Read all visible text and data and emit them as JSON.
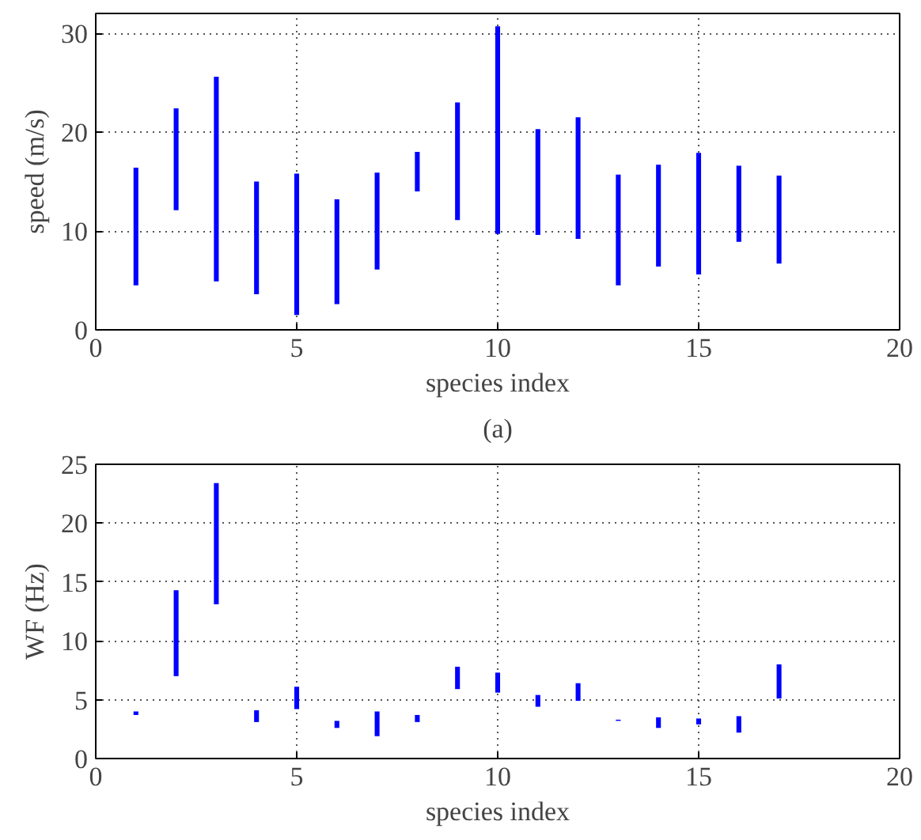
{
  "chart_data": [
    {
      "type": "bar",
      "x": [
        1,
        2,
        3,
        4,
        5,
        6,
        7,
        8,
        9,
        10,
        11,
        12,
        13,
        14,
        15,
        16,
        17
      ],
      "base": [
        4.5,
        12.1,
        4.9,
        3.6,
        1.5,
        2.6,
        6.1,
        14.0,
        11.1,
        9.7,
        9.6,
        9.2,
        4.5,
        6.4,
        5.6,
        8.9,
        6.7
      ],
      "values": [
        11.9,
        10.3,
        20.7,
        11.4,
        14.3,
        10.6,
        9.8,
        4.0,
        11.9,
        21.0,
        10.7,
        12.3,
        11.2,
        10.3,
        12.3,
        7.7,
        8.9
      ],
      "color": "#0000ff",
      "xlabel": "species index",
      "ylabel": "speed (m/s)",
      "xlim": [
        0,
        20
      ],
      "xticks": [
        0,
        5,
        10,
        15,
        20
      ],
      "ylim": [
        0,
        32
      ],
      "yticks": [
        0,
        10,
        20,
        30
      ],
      "grid": true,
      "annotations": [
        "(a)"
      ]
    },
    {
      "type": "bar",
      "x": [
        1,
        2,
        3,
        4,
        5,
        6,
        7,
        8,
        9,
        10,
        11,
        12,
        13,
        14,
        15,
        16,
        17
      ],
      "base": [
        3.7,
        7.0,
        13.1,
        3.1,
        4.2,
        2.6,
        1.9,
        3.1,
        5.9,
        5.6,
        4.4,
        4.9,
        3.2,
        2.6,
        2.9,
        2.2,
        5.1
      ],
      "values": [
        0.3,
        7.3,
        10.3,
        1.0,
        1.9,
        0.6,
        2.1,
        0.6,
        1.9,
        1.7,
        1.0,
        1.5,
        0.1,
        0.9,
        0.5,
        1.4,
        2.9
      ],
      "color": "#0000ff",
      "xlabel": "species index",
      "ylabel": "WF (Hz)",
      "xlim": [
        0,
        20
      ],
      "xticks": [
        0,
        5,
        10,
        15,
        20
      ],
      "ylim": [
        0,
        25
      ],
      "yticks": [
        0,
        5,
        10,
        15,
        20,
        25
      ],
      "grid": true
    }
  ]
}
